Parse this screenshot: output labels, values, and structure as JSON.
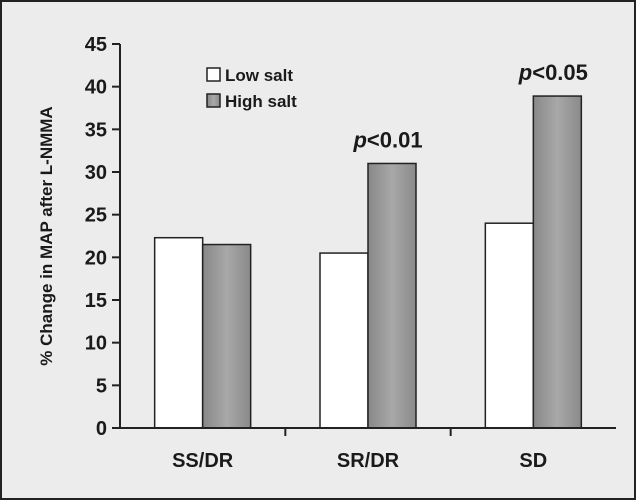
{
  "chart_data": {
    "type": "bar",
    "categories": [
      "SS/DR",
      "SR/DR",
      "SD"
    ],
    "series": [
      {
        "name": "Low salt",
        "values": [
          22.3,
          20.5,
          24.0
        ],
        "color": "#ffffff"
      },
      {
        "name": "High salt",
        "values": [
          21.5,
          31.0,
          38.9
        ],
        "color": "#9a9a9a"
      }
    ],
    "ylabel": "% Change in MAP after L-NMMA",
    "ylim": [
      0,
      45
    ],
    "yticks": [
      0,
      5,
      10,
      15,
      20,
      25,
      30,
      35,
      40,
      45
    ],
    "grid": false,
    "legend_position": "top-left",
    "annotations": [
      {
        "category": "SR/DR",
        "series": "High salt",
        "p_symbol": "p",
        "rest": "<0.01"
      },
      {
        "category": "SD",
        "series": "High salt",
        "p_symbol": "p",
        "rest": "<0.05"
      }
    ]
  }
}
